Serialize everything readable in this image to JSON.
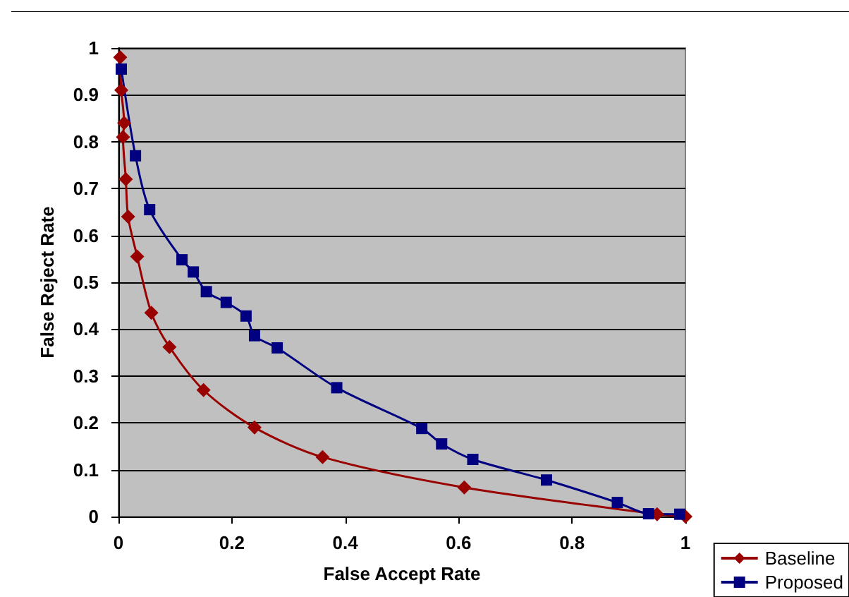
{
  "chart_data": {
    "type": "line",
    "xlabel": "False Accept Rate",
    "ylabel": "False Reject Rate",
    "xlim": [
      0,
      1
    ],
    "xticks": [
      0,
      0.2,
      0.4,
      0.6,
      0.8,
      1
    ],
    "ylim": [
      0,
      1
    ],
    "yticks": [
      0,
      0.1,
      0.2,
      0.3,
      0.4,
      0.5,
      0.6,
      0.7,
      0.8,
      0.9,
      1
    ],
    "grid": "y",
    "legend": "bottom right",
    "series": [
      {
        "name": "Baseline",
        "color": "#990000",
        "marker": "diamond",
        "x": [
          0.003,
          0.005,
          0.01,
          0.008,
          0.013,
          0.017,
          0.033,
          0.058,
          0.09,
          0.15,
          0.24,
          0.36,
          0.61,
          0.95,
          1.0
        ],
        "values": [
          0.98,
          0.91,
          0.84,
          0.81,
          0.72,
          0.64,
          0.555,
          0.435,
          0.362,
          0.27,
          0.19,
          0.127,
          0.062,
          0.005,
          0.0
        ]
      },
      {
        "name": "Proposed",
        "color": "#000080",
        "marker": "square",
        "x": [
          0.005,
          0.03,
          0.055,
          0.112,
          0.132,
          0.155,
          0.19,
          0.225,
          0.24,
          0.28,
          0.385,
          0.535,
          0.57,
          0.625,
          0.755,
          0.88,
          0.935,
          0.99
        ],
        "values": [
          0.955,
          0.77,
          0.655,
          0.548,
          0.522,
          0.48,
          0.457,
          0.428,
          0.386,
          0.36,
          0.275,
          0.188,
          0.155,
          0.122,
          0.078,
          0.03,
          0.006,
          0.005
        ]
      }
    ]
  }
}
